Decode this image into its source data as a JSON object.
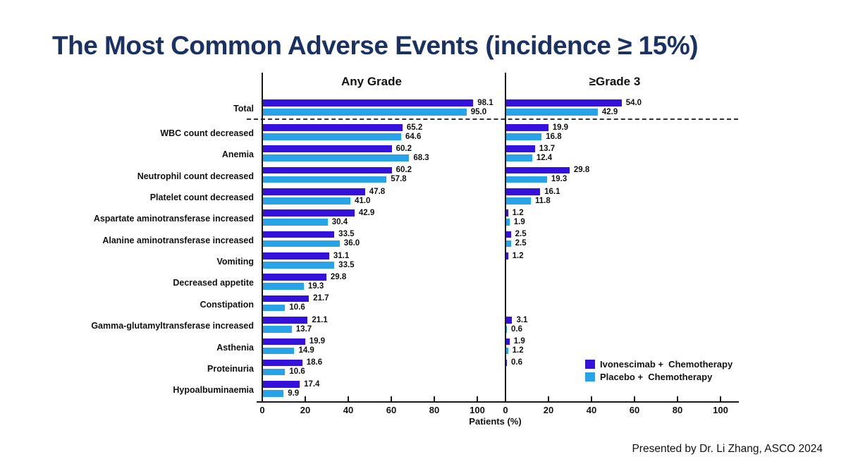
{
  "title": "The Most Common Adverse Events (incidence ≥ 15%)",
  "title_color": "#1a3263",
  "footer": "Presented by Dr. Li Zhang, ASCO 2024",
  "chart_data": {
    "type": "bar",
    "orientation": "horizontal",
    "xlabel": "Patients (%)",
    "xlim": [
      0,
      110
    ],
    "grid": false,
    "legend_position": "bottom-right",
    "panels": [
      {
        "title": "Any Grade",
        "ticks": [
          0,
          20,
          40,
          60,
          80,
          100
        ]
      },
      {
        "title": "≥Grade 3",
        "ticks": [
          0,
          20,
          40,
          60,
          80,
          100
        ]
      }
    ],
    "series": [
      {
        "name": "Ivonescimab +  Chemotherapy",
        "color": "#3512db"
      },
      {
        "name": "Placebo +  Chemotherapy",
        "color": "#29a3e8"
      }
    ],
    "rows": [
      {
        "label": "Total",
        "any_grade": [
          98.1,
          95.0
        ],
        "grade3": [
          54.0,
          42.9
        ],
        "separator_after": true
      },
      {
        "label": "WBC count decreased",
        "any_grade": [
          65.2,
          64.6
        ],
        "grade3": [
          19.9,
          16.8
        ]
      },
      {
        "label": "Anemia",
        "any_grade": [
          60.2,
          68.3
        ],
        "grade3": [
          13.7,
          12.4
        ]
      },
      {
        "label": "Neutrophil count decreased",
        "any_grade": [
          60.2,
          57.8
        ],
        "grade3": [
          29.8,
          19.3
        ]
      },
      {
        "label": "Platelet count decreased",
        "any_grade": [
          47.8,
          41.0
        ],
        "grade3": [
          16.1,
          11.8
        ]
      },
      {
        "label": "Aspartate aminotransferase increased",
        "any_grade": [
          42.9,
          30.4
        ],
        "grade3": [
          1.2,
          1.9
        ]
      },
      {
        "label": "Alanine aminotransferase increased",
        "any_grade": [
          33.5,
          36.0
        ],
        "grade3": [
          2.5,
          2.5
        ]
      },
      {
        "label": "Vomiting",
        "any_grade": [
          31.1,
          33.5
        ],
        "grade3": [
          1.2,
          null
        ]
      },
      {
        "label": "Decreased appetite",
        "any_grade": [
          29.8,
          19.3
        ],
        "grade3": [
          null,
          null
        ]
      },
      {
        "label": "Constipation",
        "any_grade": [
          21.7,
          10.6
        ],
        "grade3": [
          null,
          null
        ]
      },
      {
        "label": "Gamma-glutamyltransferase increased",
        "any_grade": [
          21.1,
          13.7
        ],
        "grade3": [
          3.1,
          0.6
        ]
      },
      {
        "label": "Asthenia",
        "any_grade": [
          19.9,
          14.9
        ],
        "grade3": [
          1.9,
          1.2
        ]
      },
      {
        "label": "Proteinuria",
        "any_grade": [
          18.6,
          10.6
        ],
        "grade3": [
          0.6,
          null
        ]
      },
      {
        "label": "Hypoalbuminaemia",
        "any_grade": [
          17.4,
          9.9
        ],
        "grade3": [
          null,
          null
        ]
      }
    ]
  }
}
